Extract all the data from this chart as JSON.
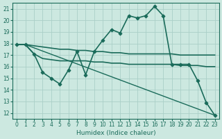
{
  "xlabel": "Humidex (Indice chaleur)",
  "background_color": "#cce8e0",
  "grid_color": "#aacfc8",
  "line_color": "#1a6b5a",
  "xlim": [
    -0.5,
    23.5
  ],
  "ylim": [
    11.5,
    21.5
  ],
  "yticks": [
    12,
    13,
    14,
    15,
    16,
    17,
    18,
    19,
    20,
    21
  ],
  "xticks": [
    0,
    1,
    2,
    3,
    4,
    5,
    6,
    7,
    8,
    9,
    10,
    11,
    12,
    13,
    14,
    15,
    16,
    17,
    18,
    19,
    20,
    21,
    22,
    23
  ],
  "series": [
    {
      "x": [
        0,
        1,
        2,
        3,
        4,
        5,
        6,
        7,
        8,
        9,
        10,
        11,
        12,
        13,
        14,
        15,
        16,
        17,
        18,
        19,
        20,
        21,
        22,
        23
      ],
      "y": [
        17.9,
        17.9,
        17.8,
        17.7,
        17.6,
        17.5,
        17.5,
        17.4,
        17.4,
        17.3,
        17.3,
        17.2,
        17.2,
        17.1,
        17.1,
        17.1,
        17.1,
        17.1,
        17.1,
        17.0,
        17.0,
        17.0,
        17.0,
        17.0
      ],
      "marker": null,
      "linewidth": 1.2
    },
    {
      "x": [
        0,
        1,
        2,
        3,
        4,
        5,
        6,
        7,
        8,
        9,
        10,
        11,
        12,
        13,
        14,
        15,
        16,
        17,
        18,
        19,
        20,
        21,
        22,
        23
      ],
      "y": [
        17.9,
        17.9,
        17.1,
        16.7,
        16.6,
        16.5,
        16.5,
        16.5,
        16.5,
        16.4,
        16.4,
        16.3,
        16.3,
        16.2,
        16.2,
        16.2,
        16.2,
        16.2,
        16.2,
        16.1,
        16.1,
        16.1,
        16.0,
        16.0
      ],
      "marker": null,
      "linewidth": 1.2
    },
    {
      "x": [
        0,
        1,
        2,
        3,
        4,
        5,
        6,
        7,
        8,
        9,
        10,
        11,
        12,
        13,
        14,
        15,
        16,
        17,
        18,
        19,
        20,
        21,
        22,
        23
      ],
      "y": [
        17.9,
        17.9,
        17.1,
        15.5,
        15.0,
        14.5,
        15.7,
        17.3,
        15.3,
        17.3,
        18.3,
        19.2,
        18.9,
        20.4,
        20.2,
        20.4,
        21.2,
        20.4,
        16.2,
        16.2,
        16.2,
        14.8,
        12.9,
        11.8
      ],
      "marker": "D",
      "markersize": 2.5,
      "linewidth": 1.2
    },
    {
      "x": [
        0,
        1,
        23
      ],
      "y": [
        17.9,
        17.9,
        11.8
      ],
      "marker": null,
      "linewidth": 1.0
    }
  ]
}
